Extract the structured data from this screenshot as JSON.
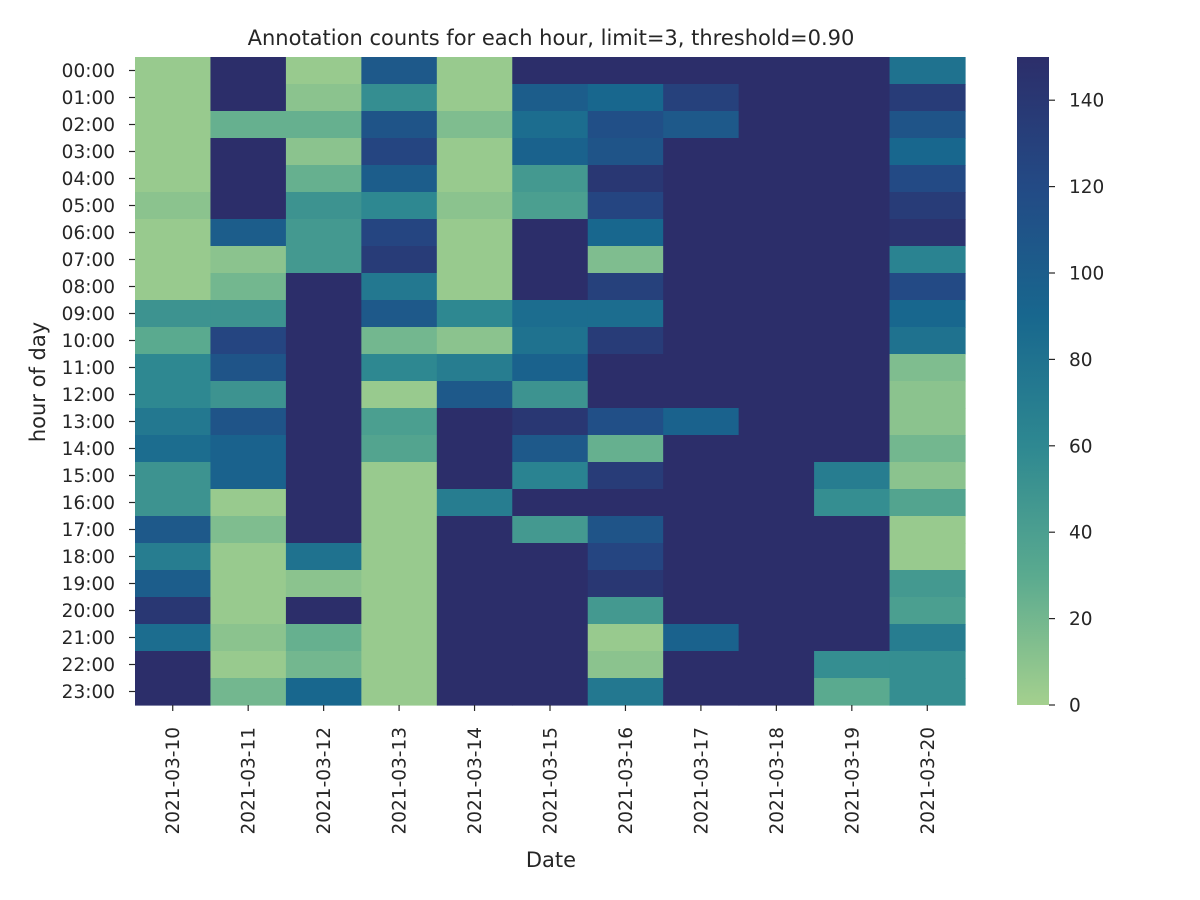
{
  "chart_data": {
    "type": "heatmap",
    "title": "Annotation counts for each hour, limit=3, threshold=0.90",
    "xlabel": "Date",
    "ylabel": "hour of day",
    "x_categories": [
      "2021-03-10",
      "2021-03-11",
      "2021-03-12",
      "2021-03-13",
      "2021-03-14",
      "2021-03-15",
      "2021-03-16",
      "2021-03-17",
      "2021-03-18",
      "2021-03-19",
      "2021-03-20"
    ],
    "y_categories": [
      "00:00",
      "01:00",
      "02:00",
      "03:00",
      "04:00",
      "05:00",
      "06:00",
      "07:00",
      "08:00",
      "09:00",
      "10:00",
      "11:00",
      "12:00",
      "13:00",
      "14:00",
      "15:00",
      "16:00",
      "17:00",
      "18:00",
      "19:00",
      "20:00",
      "21:00",
      "22:00",
      "23:00"
    ],
    "values": [
      [
        5,
        150,
        5,
        105,
        5,
        150,
        150,
        150,
        150,
        150,
        80
      ],
      [
        5,
        150,
        10,
        55,
        5,
        100,
        90,
        130,
        150,
        150,
        135
      ],
      [
        5,
        25,
        25,
        110,
        15,
        85,
        115,
        105,
        150,
        150,
        110
      ],
      [
        5,
        150,
        10,
        125,
        5,
        95,
        110,
        150,
        150,
        150,
        90
      ],
      [
        5,
        150,
        25,
        100,
        5,
        45,
        140,
        150,
        150,
        150,
        120
      ],
      [
        10,
        150,
        50,
        60,
        10,
        40,
        125,
        150,
        150,
        150,
        135
      ],
      [
        5,
        100,
        45,
        125,
        5,
        150,
        90,
        150,
        150,
        150,
        145
      ],
      [
        5,
        10,
        45,
        135,
        5,
        150,
        15,
        150,
        150,
        150,
        65
      ],
      [
        5,
        20,
        150,
        75,
        5,
        150,
        130,
        150,
        150,
        150,
        120
      ],
      [
        50,
        50,
        150,
        105,
        60,
        85,
        85,
        150,
        150,
        150,
        90
      ],
      [
        30,
        125,
        150,
        20,
        10,
        80,
        135,
        150,
        150,
        150,
        80
      ],
      [
        60,
        110,
        150,
        60,
        70,
        95,
        150,
        150,
        150,
        150,
        15
      ],
      [
        60,
        50,
        150,
        5,
        105,
        50,
        150,
        150,
        150,
        150,
        10
      ],
      [
        75,
        110,
        150,
        40,
        150,
        140,
        115,
        95,
        150,
        150,
        10
      ],
      [
        85,
        95,
        150,
        35,
        150,
        105,
        25,
        150,
        150,
        150,
        20
      ],
      [
        50,
        95,
        150,
        5,
        150,
        65,
        135,
        150,
        150,
        70,
        10
      ],
      [
        50,
        5,
        150,
        5,
        70,
        150,
        150,
        150,
        150,
        55,
        35
      ],
      [
        105,
        15,
        150,
        5,
        150,
        45,
        110,
        150,
        150,
        150,
        5
      ],
      [
        70,
        5,
        80,
        5,
        150,
        150,
        125,
        150,
        150,
        150,
        5
      ],
      [
        100,
        5,
        10,
        5,
        150,
        150,
        140,
        150,
        150,
        150,
        45
      ],
      [
        140,
        5,
        150,
        5,
        150,
        150,
        45,
        150,
        150,
        150,
        40
      ],
      [
        85,
        10,
        25,
        5,
        150,
        150,
        5,
        95,
        150,
        150,
        70
      ],
      [
        150,
        5,
        20,
        5,
        150,
        150,
        10,
        150,
        150,
        55,
        55
      ],
      [
        150,
        20,
        90,
        5,
        150,
        150,
        75,
        150,
        150,
        30,
        55
      ]
    ],
    "colorbar": {
      "min": 0,
      "max": 150,
      "ticks": [
        0,
        20,
        40,
        60,
        80,
        100,
        120,
        140
      ],
      "colormap": "crest",
      "color_stops": [
        "#a4d08e",
        "#5aaa8f",
        "#2e8891",
        "#18678e",
        "#234a85",
        "#2c2e6a"
      ]
    }
  }
}
